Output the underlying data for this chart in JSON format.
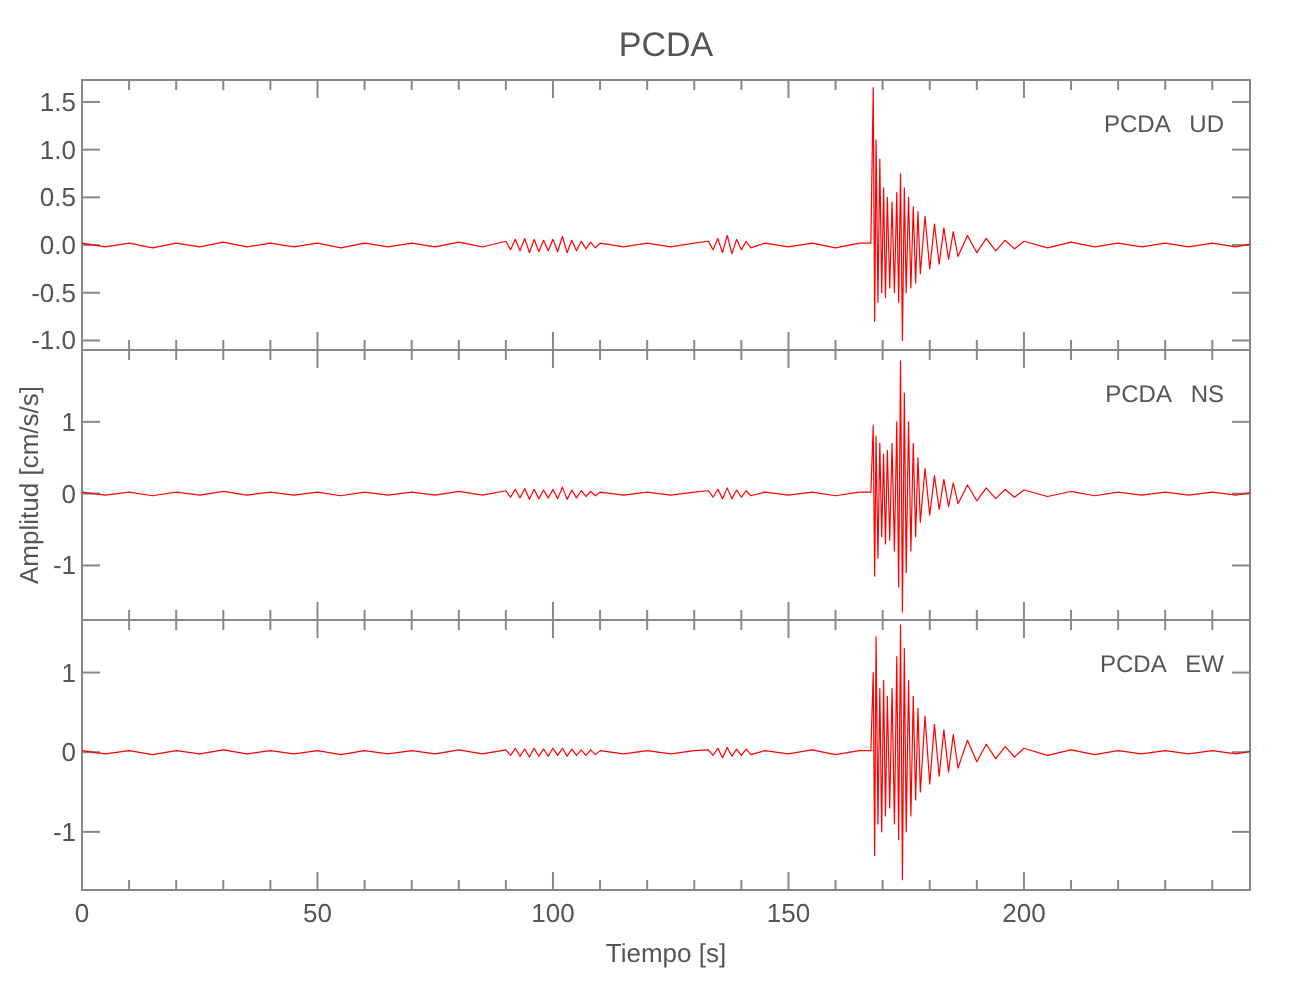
{
  "chart_data": [
    {
      "type": "line",
      "title": "PCDA",
      "annotations": [
        "PCDA   UD"
      ],
      "color": "#ff0000",
      "tick_labels": "y",
      "xlim": [
        0,
        248
      ],
      "xticks": [
        0,
        {
          "value": 10,
          "label": null
        },
        {
          "value": 20,
          "label": null
        },
        {
          "value": 30,
          "label": null
        },
        {
          "value": 40,
          "label": null
        },
        50,
        {
          "value": 60,
          "label": null
        },
        {
          "value": 70,
          "label": null
        },
        {
          "value": 80,
          "label": null
        },
        {
          "value": 90,
          "label": null
        },
        100,
        {
          "value": 110,
          "label": null
        },
        {
          "value": 120,
          "label": null
        },
        {
          "value": 130,
          "label": null
        },
        {
          "value": 140,
          "label": null
        },
        150,
        {
          "value": 160,
          "label": null
        },
        {
          "value": 170,
          "label": null
        },
        {
          "value": 180,
          "label": null
        },
        {
          "value": 190,
          "label": null
        },
        200,
        {
          "value": 210,
          "label": null
        },
        {
          "value": 220,
          "label": null
        },
        {
          "value": 230,
          "label": null
        },
        {
          "value": 240,
          "label": null
        }
      ],
      "ylim": [
        -1.1,
        1.73
      ],
      "yticks": [
        {
          "value": -1,
          "label": "-1.0"
        },
        -0.5,
        {
          "value": 0,
          "label": "0.0"
        },
        0.5,
        {
          "value": 1,
          "label": "1.0"
        },
        1.5
      ],
      "x": [
        0,
        5,
        10,
        15,
        20,
        25,
        30,
        35,
        40,
        45,
        50,
        55,
        60,
        65,
        70,
        75,
        80,
        85,
        90,
        91,
        92,
        93,
        94,
        95,
        96,
        97,
        98,
        99,
        100,
        101,
        102,
        103,
        104,
        105,
        106,
        107,
        108,
        109,
        110,
        115,
        120,
        125,
        130,
        133,
        134,
        135,
        136,
        137,
        138,
        139,
        140,
        141,
        142,
        145,
        150,
        155,
        160,
        165,
        167.5,
        168,
        168.3,
        168.6,
        169,
        169.4,
        169.8,
        170.2,
        170.6,
        171,
        171.5,
        172,
        172.5,
        173,
        173.4,
        173.8,
        174.2,
        174.6,
        175,
        175.5,
        176,
        176.5,
        177,
        177.5,
        178,
        179,
        180,
        181,
        182,
        183,
        184,
        185,
        186,
        188,
        190,
        192,
        194,
        196,
        198,
        200,
        205,
        210,
        215,
        220,
        225,
        230,
        235,
        240,
        245,
        248
      ],
      "values": [
        0.02,
        -0.02,
        0.02,
        -0.03,
        0.02,
        -0.02,
        0.03,
        -0.02,
        0.02,
        -0.02,
        0.02,
        -0.03,
        0.02,
        -0.02,
        0.02,
        -0.02,
        0.03,
        -0.02,
        0.04,
        -0.05,
        0.06,
        -0.06,
        0.07,
        -0.08,
        0.06,
        -0.07,
        0.05,
        -0.06,
        0.06,
        -0.07,
        0.09,
        -0.08,
        0.05,
        -0.06,
        0.04,
        -0.04,
        0.03,
        -0.03,
        0.02,
        -0.02,
        0.02,
        -0.02,
        0.02,
        0.04,
        -0.05,
        0.07,
        -0.08,
        0.1,
        -0.09,
        0.06,
        -0.05,
        0.04,
        -0.03,
        0.02,
        -0.02,
        0.02,
        -0.03,
        0.02,
        0.02,
        1.65,
        -0.8,
        1.1,
        -0.6,
        0.9,
        -0.5,
        0.6,
        -0.55,
        0.5,
        -0.45,
        0.45,
        -0.5,
        0.55,
        -0.6,
        0.75,
        -1.0,
        0.6,
        -0.5,
        0.5,
        -0.45,
        0.4,
        -0.4,
        0.35,
        -0.3,
        0.3,
        -0.25,
        0.22,
        -0.2,
        0.18,
        -0.15,
        0.14,
        -0.12,
        0.1,
        -0.08,
        0.07,
        -0.06,
        0.05,
        -0.04,
        0.04,
        -0.03,
        0.03,
        -0.02,
        0.02,
        -0.02,
        0.02,
        -0.02,
        0.02,
        -0.02,
        0.01
      ]
    },
    {
      "type": "line",
      "ylabel": "Amplitud [cm/s/s]",
      "annotations": [
        "PCDA   NS"
      ],
      "color": "#ff0000",
      "tick_labels": "y",
      "xlim": [
        0,
        248
      ],
      "xticks": [
        0,
        {
          "value": 10,
          "label": null
        },
        {
          "value": 20,
          "label": null
        },
        {
          "value": 30,
          "label": null
        },
        {
          "value": 40,
          "label": null
        },
        50,
        {
          "value": 60,
          "label": null
        },
        {
          "value": 70,
          "label": null
        },
        {
          "value": 80,
          "label": null
        },
        {
          "value": 90,
          "label": null
        },
        100,
        {
          "value": 110,
          "label": null
        },
        {
          "value": 120,
          "label": null
        },
        {
          "value": 130,
          "label": null
        },
        {
          "value": 140,
          "label": null
        },
        150,
        {
          "value": 160,
          "label": null
        },
        {
          "value": 170,
          "label": null
        },
        {
          "value": 180,
          "label": null
        },
        {
          "value": 190,
          "label": null
        },
        200,
        {
          "value": 210,
          "label": null
        },
        {
          "value": 220,
          "label": null
        },
        {
          "value": 230,
          "label": null
        },
        {
          "value": 240,
          "label": null
        }
      ],
      "ylim": [
        -1.76,
        2.0
      ],
      "yticks": [
        -1,
        0,
        1
      ],
      "x": [
        0,
        5,
        10,
        15,
        20,
        25,
        30,
        35,
        40,
        45,
        50,
        55,
        60,
        65,
        70,
        75,
        80,
        85,
        90,
        91,
        92,
        93,
        94,
        95,
        96,
        97,
        98,
        99,
        100,
        101,
        102,
        103,
        104,
        105,
        106,
        107,
        108,
        109,
        110,
        115,
        120,
        125,
        130,
        133,
        134,
        135,
        136,
        137,
        138,
        139,
        140,
        141,
        142,
        145,
        150,
        155,
        160,
        165,
        167.5,
        168,
        168.3,
        168.6,
        169,
        169.4,
        169.8,
        170.2,
        170.6,
        171,
        171.5,
        172,
        172.5,
        173,
        173.4,
        173.8,
        174.2,
        174.6,
        175,
        175.5,
        176,
        176.5,
        177,
        177.5,
        178,
        179,
        180,
        181,
        182,
        183,
        184,
        185,
        186,
        188,
        190,
        192,
        194,
        196,
        198,
        200,
        205,
        210,
        215,
        220,
        225,
        230,
        235,
        240,
        245,
        248
      ],
      "values": [
        0.02,
        -0.02,
        0.02,
        -0.03,
        0.02,
        -0.02,
        0.03,
        -0.02,
        0.02,
        -0.02,
        0.02,
        -0.03,
        0.02,
        -0.02,
        0.02,
        -0.02,
        0.03,
        -0.02,
        0.04,
        -0.05,
        0.06,
        -0.06,
        0.07,
        -0.08,
        0.06,
        -0.07,
        0.05,
        -0.06,
        0.06,
        -0.07,
        0.09,
        -0.08,
        0.05,
        -0.06,
        0.04,
        -0.04,
        0.03,
        -0.03,
        0.02,
        -0.02,
        0.02,
        -0.02,
        0.02,
        0.04,
        -0.05,
        0.06,
        -0.07,
        0.08,
        -0.07,
        0.05,
        -0.05,
        0.04,
        -0.03,
        0.02,
        -0.02,
        0.02,
        -0.03,
        0.02,
        0.02,
        0.95,
        -1.15,
        0.8,
        -0.9,
        0.7,
        -0.6,
        0.55,
        -0.7,
        0.6,
        -0.65,
        0.7,
        -0.8,
        1.0,
        -1.3,
        1.85,
        -1.65,
        1.4,
        -1.1,
        1.0,
        -0.8,
        0.7,
        -0.6,
        0.5,
        -0.4,
        0.35,
        -0.3,
        0.25,
        -0.22,
        0.2,
        -0.18,
        0.15,
        -0.14,
        0.12,
        -0.1,
        0.08,
        -0.07,
        0.06,
        -0.05,
        0.05,
        -0.04,
        0.03,
        -0.03,
        0.02,
        -0.02,
        0.02,
        -0.02,
        0.02,
        -0.02,
        0.01
      ]
    },
    {
      "type": "line",
      "xlabel": "Tiempo [s]",
      "annotations": [
        "PCDA   EW"
      ],
      "color": "#ff0000",
      "xlim": [
        0,
        248
      ],
      "xticks": [
        0,
        {
          "value": 10,
          "label": null
        },
        {
          "value": 20,
          "label": null
        },
        {
          "value": 30,
          "label": null
        },
        {
          "value": 40,
          "label": null
        },
        50,
        {
          "value": 60,
          "label": null
        },
        {
          "value": 70,
          "label": null
        },
        {
          "value": 80,
          "label": null
        },
        {
          "value": 90,
          "label": null
        },
        100,
        {
          "value": 110,
          "label": null
        },
        {
          "value": 120,
          "label": null
        },
        {
          "value": 130,
          "label": null
        },
        {
          "value": 140,
          "label": null
        },
        150,
        {
          "value": 160,
          "label": null
        },
        {
          "value": 170,
          "label": null
        },
        {
          "value": 180,
          "label": null
        },
        {
          "value": 190,
          "label": null
        },
        200,
        {
          "value": 210,
          "label": null
        },
        {
          "value": 220,
          "label": null
        },
        {
          "value": 230,
          "label": null
        },
        {
          "value": 240,
          "label": null
        }
      ],
      "ylim": [
        -1.73,
        1.66
      ],
      "yticks": [
        -1,
        0,
        1
      ],
      "x": [
        0,
        5,
        10,
        15,
        20,
        25,
        30,
        35,
        40,
        45,
        50,
        55,
        60,
        65,
        70,
        75,
        80,
        85,
        90,
        91,
        92,
        93,
        94,
        95,
        96,
        97,
        98,
        99,
        100,
        101,
        102,
        103,
        104,
        105,
        106,
        107,
        108,
        109,
        110,
        115,
        120,
        125,
        130,
        133,
        134,
        135,
        136,
        137,
        138,
        139,
        140,
        141,
        142,
        145,
        150,
        155,
        160,
        165,
        167.5,
        168,
        168.3,
        168.6,
        169,
        169.4,
        169.8,
        170.2,
        170.6,
        171,
        171.5,
        172,
        172.5,
        173,
        173.4,
        173.8,
        174.2,
        174.6,
        175,
        175.5,
        176,
        176.5,
        177,
        177.5,
        178,
        179,
        180,
        181,
        182,
        183,
        184,
        185,
        186,
        188,
        190,
        192,
        194,
        196,
        198,
        200,
        205,
        210,
        215,
        220,
        225,
        230,
        235,
        240,
        245,
        248
      ],
      "values": [
        0.02,
        -0.02,
        0.02,
        -0.03,
        0.02,
        -0.02,
        0.03,
        -0.02,
        0.02,
        -0.02,
        0.02,
        -0.03,
        0.02,
        -0.02,
        0.02,
        -0.02,
        0.03,
        -0.02,
        0.03,
        -0.04,
        0.05,
        -0.05,
        0.04,
        -0.06,
        0.05,
        -0.05,
        0.04,
        -0.05,
        0.05,
        -0.04,
        0.05,
        -0.05,
        0.04,
        -0.04,
        0.03,
        -0.04,
        0.03,
        -0.03,
        0.02,
        -0.02,
        0.02,
        -0.02,
        0.02,
        0.03,
        -0.04,
        0.05,
        -0.07,
        0.06,
        -0.05,
        0.04,
        -0.04,
        0.04,
        -0.03,
        0.02,
        -0.02,
        0.03,
        -0.03,
        0.02,
        0.02,
        1.0,
        -1.3,
        1.45,
        -0.9,
        0.8,
        -1.0,
        0.9,
        -0.8,
        0.7,
        -0.7,
        0.8,
        -0.9,
        1.2,
        -1.1,
        1.6,
        -1.6,
        1.3,
        -1.0,
        0.9,
        -0.8,
        0.7,
        -0.6,
        0.55,
        -0.5,
        0.45,
        -0.4,
        0.35,
        -0.3,
        0.28,
        -0.25,
        0.22,
        -0.2,
        0.15,
        -0.12,
        0.1,
        -0.08,
        0.07,
        -0.06,
        0.05,
        -0.04,
        0.03,
        -0.03,
        0.02,
        -0.02,
        0.02,
        -0.02,
        0.02,
        -0.02,
        0.01
      ]
    }
  ]
}
